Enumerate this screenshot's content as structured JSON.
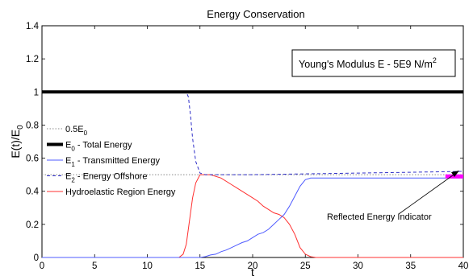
{
  "chart_data": {
    "type": "line",
    "title": "Energy Conservation",
    "xlabel": "t",
    "ylabel_parts": [
      "E(t)/E",
      "0"
    ],
    "xlim": [
      0,
      40
    ],
    "ylim": [
      0,
      1.4
    ],
    "x_ticks": [
      "0",
      "5",
      "10",
      "15",
      "20",
      "25",
      "30",
      "35",
      "40"
    ],
    "y_ticks": [
      "0",
      "0.2",
      "0.4",
      "0.6",
      "0.8",
      "1",
      "1.2",
      "1.4"
    ],
    "grid": false,
    "legend_position": "center-left",
    "annotation": {
      "main": "Young's Modulus E - 5E9 N/m",
      "sup": "2"
    },
    "arrow_label": "Reflected Energy Indicator",
    "series": [
      {
        "key": "half",
        "legend": {
          "pre": "0.5E",
          "sub": "0",
          "post": ""
        },
        "color": "#8a8a8a",
        "style": "dotted",
        "x": [
          0,
          40
        ],
        "y": [
          0.5,
          0.5
        ]
      },
      {
        "key": "total",
        "legend": {
          "pre": "E",
          "sub": "0",
          "post": " - Total Energy"
        },
        "color": "#000000",
        "style": "thick",
        "x": [
          0,
          40
        ],
        "y": [
          1.0,
          1.0
        ]
      },
      {
        "key": "transmitted",
        "legend": {
          "pre": "E",
          "sub": "1",
          "post": " - Transmitted Energy"
        },
        "color": "#4f5bff",
        "style": "solid",
        "x": [
          0,
          15,
          15.5,
          16,
          16.5,
          17,
          17.5,
          18,
          18.5,
          19,
          19.5,
          20,
          20.5,
          21,
          21.5,
          22,
          22.5,
          23,
          23.5,
          24,
          24.5,
          25,
          25.5,
          26,
          27,
          30,
          35,
          40
        ],
        "y": [
          0,
          0,
          0.005,
          0.015,
          0.02,
          0.035,
          0.045,
          0.06,
          0.075,
          0.09,
          0.1,
          0.12,
          0.14,
          0.15,
          0.17,
          0.2,
          0.23,
          0.26,
          0.31,
          0.37,
          0.43,
          0.47,
          0.48,
          0.48,
          0.48,
          0.48,
          0.48,
          0.48
        ]
      },
      {
        "key": "offshore",
        "legend": {
          "pre": "E",
          "sub": "2",
          "post": " - Energy Offshore"
        },
        "color": "#3030c8",
        "style": "dashed",
        "x": [
          0,
          13.7,
          13.9,
          14.1,
          14.3,
          14.6,
          15,
          15.5,
          16,
          18,
          20,
          25,
          30,
          35,
          40
        ],
        "y": [
          1.0,
          1.0,
          0.97,
          0.86,
          0.72,
          0.58,
          0.51,
          0.5,
          0.5,
          0.5,
          0.5,
          0.505,
          0.51,
          0.515,
          0.52
        ]
      },
      {
        "key": "hydro",
        "legend": {
          "pre": "Hydroelastic Region Energy",
          "sub": "",
          "post": ""
        },
        "color": "#ff3030",
        "style": "solid",
        "x": [
          0,
          13,
          13.4,
          13.7,
          14,
          14.3,
          14.6,
          15,
          16,
          17,
          18,
          18.5,
          19,
          19.5,
          20,
          20.5,
          21,
          21.5,
          22,
          22.5,
          23,
          23.5,
          24,
          24.5,
          25,
          25.5,
          26,
          30,
          35,
          40
        ],
        "y": [
          0,
          0,
          0.02,
          0.08,
          0.22,
          0.36,
          0.45,
          0.5,
          0.5,
          0.48,
          0.44,
          0.42,
          0.4,
          0.38,
          0.36,
          0.34,
          0.31,
          0.29,
          0.27,
          0.26,
          0.24,
          0.2,
          0.14,
          0.06,
          0.02,
          0.005,
          0,
          0,
          0,
          0
        ]
      },
      {
        "key": "reflected",
        "legend": null,
        "color": "#ff00ff",
        "style": "marker",
        "x": [
          38.3,
          40
        ],
        "y": [
          0.49,
          0.49
        ]
      }
    ]
  }
}
